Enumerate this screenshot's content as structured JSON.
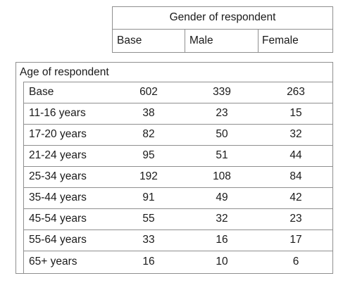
{
  "table": {
    "column_group_title": "Gender of respondent",
    "column_headers": [
      "Base",
      "Male",
      "Female"
    ],
    "row_group_title": "Age of respondent",
    "rows": [
      {
        "label": "Base",
        "values": [
          "602",
          "339",
          "263"
        ]
      },
      {
        "label": "11-16 years",
        "values": [
          "38",
          "23",
          "15"
        ]
      },
      {
        "label": "17-20 years",
        "values": [
          "82",
          "50",
          "32"
        ]
      },
      {
        "label": "21-24 years",
        "values": [
          "95",
          "51",
          "44"
        ]
      },
      {
        "label": "25-34 years",
        "values": [
          "192",
          "108",
          "84"
        ]
      },
      {
        "label": "35-44 years",
        "values": [
          "91",
          "49",
          "42"
        ]
      },
      {
        "label": "45-54 years",
        "values": [
          "55",
          "32",
          "23"
        ]
      },
      {
        "label": "55-64 years",
        "values": [
          "33",
          "16",
          "17"
        ]
      },
      {
        "label": "65+ years",
        "values": [
          "16",
          "10",
          "6"
        ]
      }
    ]
  }
}
